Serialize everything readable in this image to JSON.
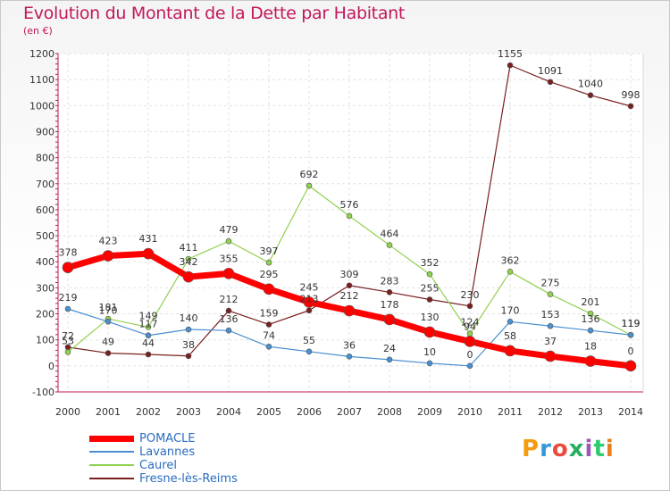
{
  "header": {
    "title": "Evolution du Montant de la Dette par Habitant",
    "unit": "(en €)"
  },
  "logo": {
    "text": "Proxiti",
    "colors": [
      "#f39c12",
      "#3498db",
      "#e74c3c",
      "#27ae60",
      "#9b59b6",
      "#2ecc71",
      "#e67e22"
    ]
  },
  "chart_data": {
    "type": "line",
    "title": "Evolution du Montant de la Dette par Habitant",
    "ylabel": "(en €)",
    "xlabel": "",
    "x": [
      "2000",
      "2001",
      "2002",
      "2003",
      "2004",
      "2005",
      "2006",
      "2007",
      "2008",
      "2009",
      "2010",
      "2011",
      "2012",
      "2013",
      "2014"
    ],
    "ylim": [
      -100,
      1200
    ],
    "yticks": [
      -100,
      0,
      100,
      200,
      300,
      400,
      500,
      600,
      700,
      800,
      900,
      1000,
      1100,
      1200
    ],
    "grid": true,
    "legend_position": "bottom-left",
    "series": [
      {
        "name": "Fresne-lès-Reims",
        "color": "#7a1f1f",
        "width": 1.2,
        "marker": 3,
        "label_offset": -9,
        "values": [
          72,
          49,
          44,
          38,
          212,
          159,
          213,
          309,
          283,
          255,
          230,
          1155,
          1091,
          1040,
          998
        ],
        "labels": [
          "72",
          "49",
          "44",
          "38",
          "212",
          "159",
          "213",
          "309",
          "283",
          "255",
          "230",
          "1155",
          "1091",
          "1040",
          "998"
        ]
      },
      {
        "name": "Caurel",
        "color": "#8fd14f",
        "width": 1.2,
        "marker": 3,
        "label_offset": -9,
        "values": [
          53,
          181,
          149,
          411,
          479,
          397,
          692,
          576,
          464,
          352,
          124,
          362,
          275,
          201,
          119
        ],
        "labels": [
          "53",
          "181",
          "149",
          "411",
          "479",
          "397",
          "692",
          "576",
          "464",
          "352",
          "124",
          "362",
          "275",
          "201",
          "119"
        ]
      },
      {
        "name": "Lavannes",
        "color": "#4a8fd0",
        "width": 1.2,
        "marker": 3,
        "label_offset": -9,
        "values": [
          219,
          170,
          117,
          140,
          136,
          74,
          55,
          36,
          24,
          10,
          0,
          170,
          153,
          136,
          119
        ],
        "labels": [
          "219",
          "170",
          "117",
          "140",
          "136",
          "74",
          "55",
          "36",
          "24",
          "10",
          "0",
          "170",
          "153",
          "136",
          "119"
        ]
      },
      {
        "name": "POMACLE",
        "color": "#ff0000",
        "width": 7,
        "marker": 6,
        "label_offset": -13,
        "values": [
          378,
          423,
          431,
          342,
          355,
          295,
          245,
          212,
          178,
          130,
          94,
          58,
          37,
          18,
          0
        ],
        "labels": [
          "378",
          "423",
          "431",
          "342",
          "355",
          "295",
          "245",
          "212",
          "178",
          "130",
          "94",
          "58",
          "37",
          "18",
          "0"
        ]
      }
    ],
    "legend": [
      "POMACLE",
      "Lavannes",
      "Caurel",
      "Fresne-lès-Reims"
    ]
  }
}
